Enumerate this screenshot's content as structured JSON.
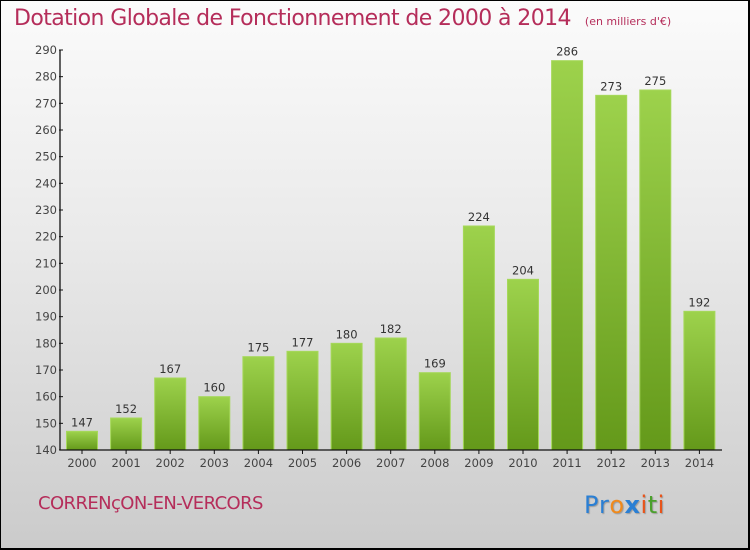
{
  "header": {
    "title": "Dotation Globale de Fonctionnement de 2000 à 2014",
    "subtitle": "(en milliers d'€)"
  },
  "footer": {
    "commune": "CORRENçON-EN-VERCORS",
    "logo_letters": [
      {
        "char": "P",
        "color": "#2a7fd4"
      },
      {
        "char": "r",
        "color": "#2a7fd4"
      },
      {
        "char": "o",
        "color": "#f08a1c"
      },
      {
        "char": "x",
        "color": "#2a7fd4"
      },
      {
        "char": "i",
        "color": "#e8541a"
      },
      {
        "char": "t",
        "color": "#4aa02c"
      },
      {
        "char": "i",
        "color": "#e8541a"
      }
    ]
  },
  "colors": {
    "title": "#b52d5a",
    "bar_top": "#9dd24c",
    "bar_bottom": "#64991a",
    "axis": "#111111"
  },
  "chart_data": {
    "type": "bar",
    "title": "Dotation Globale de Fonctionnement de 2000 à 2014",
    "subtitle": "(en milliers d'€)",
    "xlabel": "",
    "ylabel": "",
    "categories": [
      "2000",
      "2001",
      "2002",
      "2003",
      "2004",
      "2005",
      "2006",
      "2007",
      "2008",
      "2009",
      "2010",
      "2011",
      "2012",
      "2013",
      "2014"
    ],
    "values": [
      147,
      152,
      167,
      160,
      175,
      177,
      180,
      182,
      169,
      224,
      204,
      286,
      273,
      275,
      192
    ],
    "ylim": [
      140,
      290
    ],
    "yticks": [
      140,
      150,
      160,
      170,
      180,
      190,
      200,
      210,
      220,
      230,
      240,
      250,
      260,
      270,
      280,
      290
    ],
    "grid": false,
    "legend": "none",
    "data_labels": true
  }
}
